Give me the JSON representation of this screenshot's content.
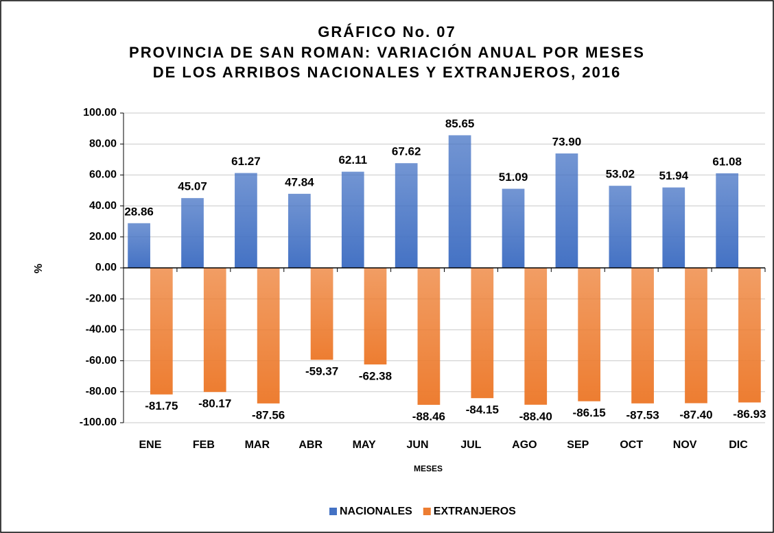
{
  "chart_data": {
    "type": "bar",
    "title": [
      "GRÁFICO No. 07",
      "PROVINCIA DE SAN ROMAN: VARIACIÓN ANUAL POR MESES",
      "DE LOS ARRIBOS NACIONALES Y EXTRANJEROS, 2016"
    ],
    "x_label": "MESES",
    "y_label": "%",
    "categories": [
      "ENE",
      "FEB",
      "MAR",
      "ABR",
      "MAY",
      "JUN",
      "JUL",
      "AGO",
      "SEP",
      "OCT",
      "NOV",
      "DIC"
    ],
    "series": [
      {
        "name": "NACIONALES",
        "color": "#4472c4",
        "values": [
          28.86,
          45.07,
          61.27,
          47.84,
          62.11,
          67.62,
          85.65,
          51.09,
          73.9,
          53.02,
          51.94,
          61.08
        ],
        "value_labels": [
          "28.86",
          "45.07",
          "61.27",
          "47.84",
          "62.11",
          "67.62",
          "85.65",
          "51.09",
          "73.90",
          "53.02",
          "51.94",
          "61.08"
        ]
      },
      {
        "name": "EXTRANJEROS",
        "color": "#ed7d31",
        "values": [
          -81.75,
          -80.17,
          -87.56,
          -59.37,
          -62.38,
          -88.46,
          -84.15,
          -88.4,
          -86.15,
          -87.53,
          -87.4,
          -86.93
        ],
        "value_labels": [
          "-81.75",
          "-80.17",
          "-87.56",
          "-59.37",
          "-62.38",
          "-88.46",
          "-84.15",
          "-88.40",
          "-86.15",
          "-87.53",
          "-87.40",
          "-86.93"
        ]
      }
    ],
    "ylim": [
      -100,
      100
    ],
    "yticks": [
      {
        "value": -100,
        "label": "-100.00"
      },
      {
        "value": -80,
        "label": "-80.00"
      },
      {
        "value": -60,
        "label": "-60.00"
      },
      {
        "value": -40,
        "label": "-40.00"
      },
      {
        "value": -20,
        "label": "-20.00"
      },
      {
        "value": 0,
        "label": "0.00"
      },
      {
        "value": 20,
        "label": "20.00"
      },
      {
        "value": 40,
        "label": "40.00"
      },
      {
        "value": 60,
        "label": "60.00"
      },
      {
        "value": 80,
        "label": "80.00"
      },
      {
        "value": 100,
        "label": "100.00"
      }
    ],
    "grid": true,
    "legend": "bottom"
  }
}
